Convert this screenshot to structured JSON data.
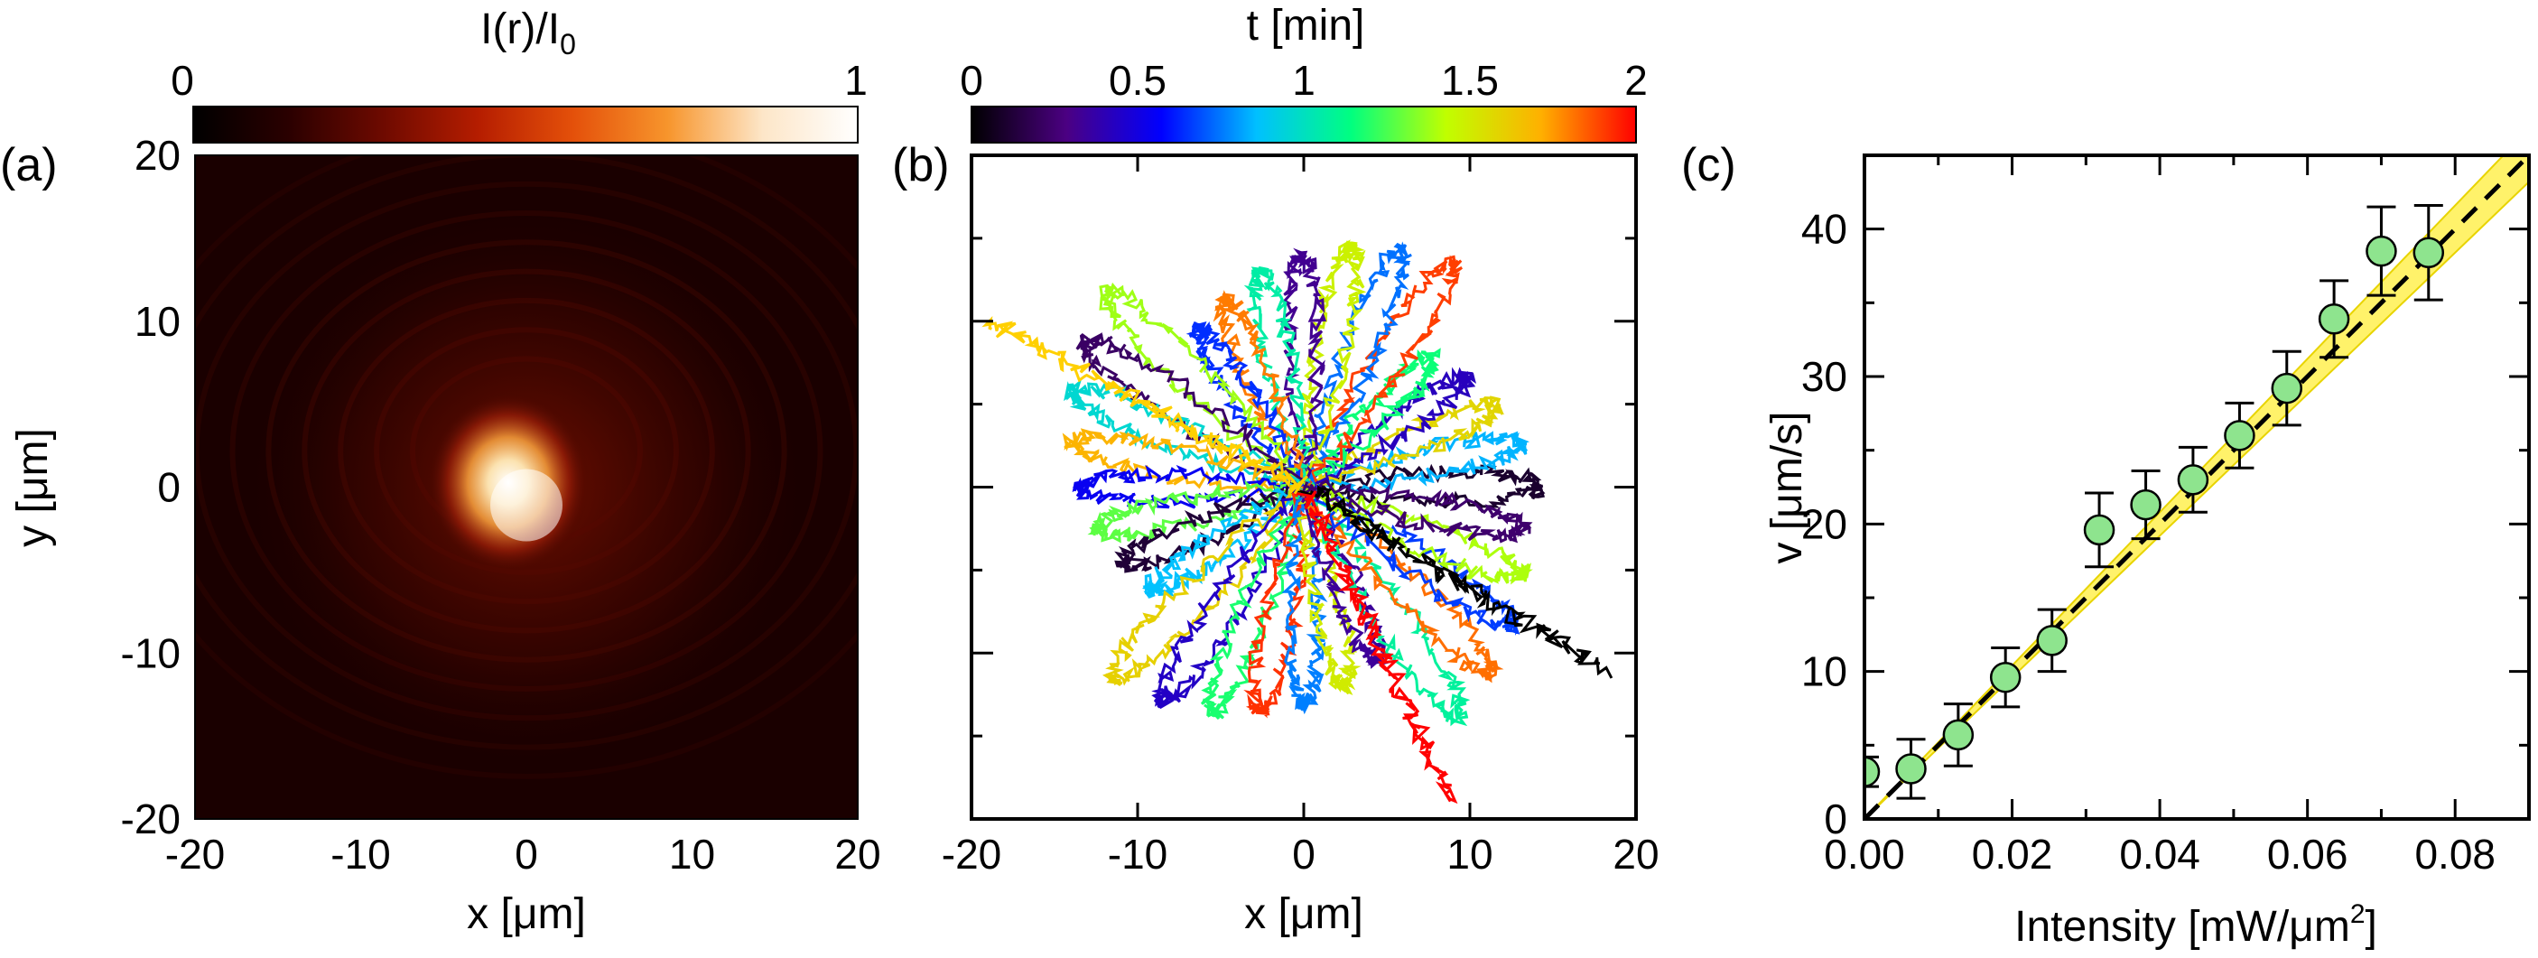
{
  "chart_data": [
    {
      "type": "heatmap",
      "panel_label": "(a)",
      "colorbar": {
        "title_main": "I(r)/I",
        "title_sub": "0",
        "min_label": "0",
        "max_label": "1",
        "range": [
          0,
          1
        ],
        "colors": [
          "#000000",
          "#2a0000",
          "#6e0a00",
          "#b51d00",
          "#e4500a",
          "#f7952c",
          "#fde6c8",
          "#ffffff"
        ]
      },
      "xlabel": "x [μm]",
      "ylabel": "y [μm]",
      "xlim": [
        -20,
        20
      ],
      "ylim": [
        -20,
        20
      ],
      "xticks": [
        "-20",
        "-10",
        "0",
        "10",
        "20"
      ],
      "yticks": [
        "-20",
        "-10",
        "0",
        "10",
        "20"
      ],
      "hotspot": {
        "cx": 0,
        "cy": 0,
        "peak_intensity": 1
      }
    },
    {
      "type": "line",
      "panel_label": "(b)",
      "colorbar": {
        "title": "t [min]",
        "tick_labels": [
          "0",
          "0.5",
          "1",
          "1.5",
          "2"
        ],
        "range": [
          0,
          2
        ],
        "colors": [
          "#000000",
          "#4b0082",
          "#0000ff",
          "#00c0ff",
          "#00ff80",
          "#c0ff00",
          "#ffb000",
          "#ff0000"
        ]
      },
      "xlabel": "x [μm]",
      "xlim": [
        -20,
        20
      ],
      "ylim": [
        -20,
        20
      ],
      "xticks": [
        "-20",
        "-10",
        "0",
        "10",
        "20"
      ],
      "trajectory_count": 32,
      "trajectory_origin": [
        0,
        0
      ]
    },
    {
      "type": "scatter",
      "panel_label": "(c)",
      "xlabel": "Intensity [mW/μm",
      "xlabel_sup": "2",
      "xlabel_end": "]",
      "ylabel": "v [μm/s]",
      "xlim": [
        0,
        0.09
      ],
      "ylim": [
        0,
        45
      ],
      "xticks": [
        "0.00",
        "0.02",
        "0.04",
        "0.06",
        "0.08"
      ],
      "yticks": [
        "0",
        "10",
        "20",
        "30",
        "40"
      ],
      "x": [
        0.0,
        0.0063,
        0.0127,
        0.0191,
        0.0254,
        0.0318,
        0.0381,
        0.0445,
        0.0508,
        0.0572,
        0.0636,
        0.07,
        0.0764
      ],
      "y": [
        3.2,
        3.4,
        5.7,
        9.6,
        12.1,
        19.6,
        21.3,
        23.0,
        26.0,
        29.2,
        33.9,
        38.5,
        38.4
      ],
      "yerr": [
        1.0,
        2.0,
        2.1,
        2.0,
        2.1,
        2.5,
        2.3,
        2.2,
        2.2,
        2.5,
        2.6,
        3.0,
        3.2
      ],
      "fit": {
        "slope": 500,
        "intercept": 0,
        "band": [
          480,
          520
        ]
      },
      "marker_color": "#8ee48e",
      "band_color": "#fff26a"
    }
  ]
}
